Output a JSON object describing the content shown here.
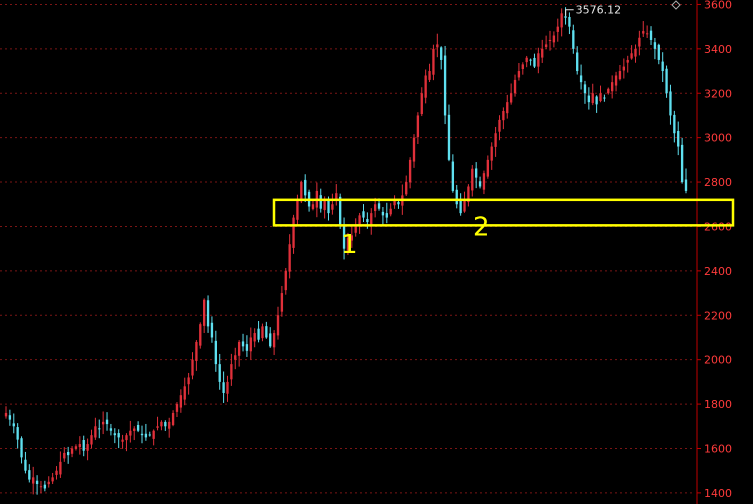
{
  "colors": {
    "background": "#000000",
    "up": "#e0303a",
    "down": "#5fe0f0",
    "axis": "#c00000",
    "grid": "#7a1515",
    "tick_text": "#ff3b3b",
    "annotation": "#ffff00",
    "peak_text": "#e6e6e6"
  },
  "chart_data": {
    "type": "candlestick",
    "y_axis": {
      "position": "right",
      "ylim": [
        1350,
        3620
      ],
      "ticks": [
        1400,
        1600,
        1800,
        2000,
        2200,
        2400,
        2600,
        2800,
        3000,
        3200,
        3400,
        3600
      ]
    },
    "grid": "horizontal dotted",
    "up_color": "red",
    "down_color": "cyan",
    "peak_annotation": {
      "label": "3576.12",
      "value": 3576.12
    },
    "support_zone": {
      "low": 2605,
      "high": 2720,
      "style": "yellow rectangle"
    },
    "markers": [
      {
        "label": "1",
        "value": 2480
      },
      {
        "label": "2",
        "value": 2560
      }
    ],
    "closes": [
      1760,
      1730,
      1700,
      1640,
      1560,
      1500,
      1460,
      1470,
      1440,
      1430,
      1420,
      1450,
      1470,
      1500,
      1540,
      1580,
      1570,
      1600,
      1610,
      1620,
      1590,
      1620,
      1660,
      1700,
      1690,
      1720,
      1710,
      1680,
      1660,
      1650,
      1640,
      1660,
      1680,
      1690,
      1680,
      1660,
      1650,
      1660,
      1680,
      1700,
      1720,
      1700,
      1720,
      1760,
      1800,
      1840,
      1880,
      1920,
      2000,
      2080,
      2160,
      2270,
      2150,
      2100,
      1980,
      1900,
      1850,
      1900,
      1980,
      2020,
      2080,
      2060,
      2040,
      2100,
      2120,
      2090,
      2150,
      2100,
      2060,
      2120,
      2200,
      2300,
      2400,
      2520,
      2640,
      2720,
      2800,
      2740,
      2690,
      2700,
      2760,
      2680,
      2720,
      2660,
      2700,
      2750,
      2600,
      2500,
      2550,
      2560,
      2600,
      2650,
      2640,
      2620,
      2660,
      2700,
      2680,
      2650,
      2640,
      2680,
      2720,
      2700,
      2740,
      2800,
      2900,
      3000,
      3100,
      3200,
      3280,
      3300,
      3400,
      3420,
      3350,
      3100,
      2900,
      2760,
      2700,
      2660,
      2720,
      2780,
      2860,
      2820,
      2780,
      2840,
      2900,
      2960,
      3020,
      3080,
      3120,
      3160,
      3200,
      3260,
      3300,
      3330,
      3360,
      3350,
      3320,
      3380,
      3400,
      3420,
      3440,
      3460,
      3500,
      3560,
      3540,
      3500,
      3400,
      3300,
      3250,
      3200,
      3160,
      3200,
      3150,
      3200,
      3180,
      3220,
      3250,
      3280,
      3300,
      3320,
      3350,
      3380,
      3400,
      3450,
      3480,
      3470,
      3440,
      3400,
      3350,
      3300,
      3200,
      3100,
      3020,
      2960,
      2800,
      2760
    ]
  }
}
